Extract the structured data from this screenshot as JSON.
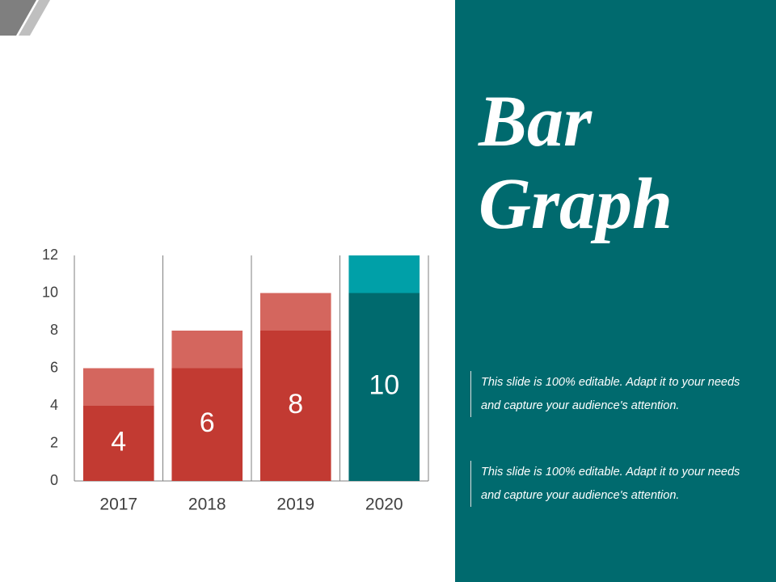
{
  "chart_data": {
    "type": "stacked_bar",
    "title": "Bar Graph",
    "categories": [
      "2017",
      "2018",
      "2019",
      "2020"
    ],
    "series": [
      {
        "colors": [
          "#c23a32",
          "#c23a32",
          "#c23a32",
          "#006a6e"
        ],
        "values": [
          4,
          6,
          8,
          10
        ]
      },
      {
        "colors": [
          "#d4665e",
          "#d4665e",
          "#d4665e",
          "#00a0a8"
        ],
        "values": [
          2,
          2,
          2,
          2
        ]
      }
    ],
    "label_series": 0,
    "ylim": [
      0,
      12
    ],
    "yticks": [
      0,
      2,
      4,
      6,
      8,
      10,
      12
    ]
  },
  "notes": [
    "This slide is 100% editable. Adapt it to your needs and capture your audience's attention.",
    "This slide is 100% editable. Adapt it to your needs and capture your audience's attention."
  ]
}
